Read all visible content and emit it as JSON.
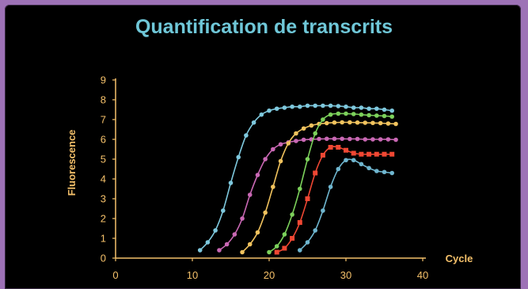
{
  "chart_data": {
    "type": "line",
    "title": "Quantification de transcrits",
    "xlabel": "Cycle",
    "ylabel": "Fluorescence",
    "xlim": [
      0,
      40
    ],
    "ylim": [
      0,
      9
    ],
    "xticks": [
      0,
      10,
      20,
      30,
      40
    ],
    "yticks": [
      0,
      1,
      2,
      3,
      4,
      5,
      6,
      7,
      8,
      9
    ],
    "grid": false,
    "legend": "none",
    "colors": {
      "background": "#000000",
      "title": "#6fc7d8",
      "axis": "#f4c06a",
      "frame": "#9d72b6"
    },
    "series": [
      {
        "color": "#7ec8dd",
        "x": [
          11,
          12,
          13,
          14,
          15,
          16,
          17,
          18,
          19,
          20,
          21,
          22,
          23,
          24,
          25,
          26,
          27,
          28,
          29,
          30,
          31,
          32,
          33,
          34,
          35,
          36
        ],
        "y": [
          0.4,
          0.8,
          1.4,
          2.4,
          3.8,
          5.1,
          6.2,
          6.85,
          7.25,
          7.45,
          7.55,
          7.6,
          7.65,
          7.65,
          7.7,
          7.7,
          7.7,
          7.7,
          7.68,
          7.65,
          7.6,
          7.6,
          7.55,
          7.55,
          7.5,
          7.45
        ]
      },
      {
        "color": "#c968b4",
        "x": [
          13.5,
          14.5,
          15.5,
          16.5,
          17.5,
          18.5,
          19.5,
          20.5,
          21.5,
          22.5,
          23.5,
          24.5,
          25.5,
          26.5,
          27.5,
          28.5,
          29.5,
          30.5,
          31.5,
          32.5,
          33.5,
          34.5,
          35.5,
          36.5
        ],
        "y": [
          0.4,
          0.7,
          1.2,
          2.0,
          3.2,
          4.2,
          5.0,
          5.5,
          5.75,
          5.85,
          5.92,
          5.98,
          6.0,
          6.02,
          6.03,
          6.03,
          6.03,
          6.02,
          6.02,
          6.0,
          6.0,
          6.0,
          6.0,
          5.98
        ]
      },
      {
        "color": "#f1c35e",
        "x": [
          16.5,
          17.5,
          18.5,
          19.5,
          20.5,
          21.5,
          22.5,
          23.5,
          24.5,
          25.5,
          26.5,
          27.5,
          28.5,
          29.5,
          30.5,
          31.5,
          32.5,
          33.5,
          34.5,
          35.5,
          36.5
        ],
        "y": [
          0.3,
          0.7,
          1.3,
          2.3,
          3.6,
          4.9,
          5.8,
          6.3,
          6.55,
          6.7,
          6.78,
          6.82,
          6.85,
          6.86,
          6.86,
          6.85,
          6.84,
          6.83,
          6.82,
          6.8,
          6.78
        ]
      },
      {
        "color": "#7cd15b",
        "x": [
          20,
          21,
          22,
          23,
          24,
          25,
          26,
          27,
          28,
          29,
          30,
          31,
          32,
          33,
          34,
          35,
          36
        ],
        "y": [
          0.3,
          0.6,
          1.2,
          2.2,
          3.5,
          5.0,
          6.3,
          7.0,
          7.25,
          7.3,
          7.3,
          7.28,
          7.25,
          7.22,
          7.2,
          7.18,
          7.15
        ]
      },
      {
        "color": "#ef4733",
        "x": [
          21,
          22,
          23,
          24,
          25,
          26,
          27,
          28,
          29,
          30,
          31,
          32,
          33,
          34,
          35,
          36
        ],
        "y": [
          0.3,
          0.5,
          1.0,
          1.8,
          3.0,
          4.3,
          5.2,
          5.6,
          5.6,
          5.45,
          5.3,
          5.25,
          5.25,
          5.25,
          5.25,
          5.25
        ]
      },
      {
        "color": "#6fb6cf",
        "x": [
          24,
          25,
          26,
          27,
          28,
          29,
          30,
          31,
          32,
          33,
          34,
          35,
          36
        ],
        "y": [
          0.4,
          0.8,
          1.4,
          2.4,
          3.6,
          4.5,
          4.95,
          4.95,
          4.75,
          4.55,
          4.4,
          4.35,
          4.3
        ]
      }
    ]
  }
}
